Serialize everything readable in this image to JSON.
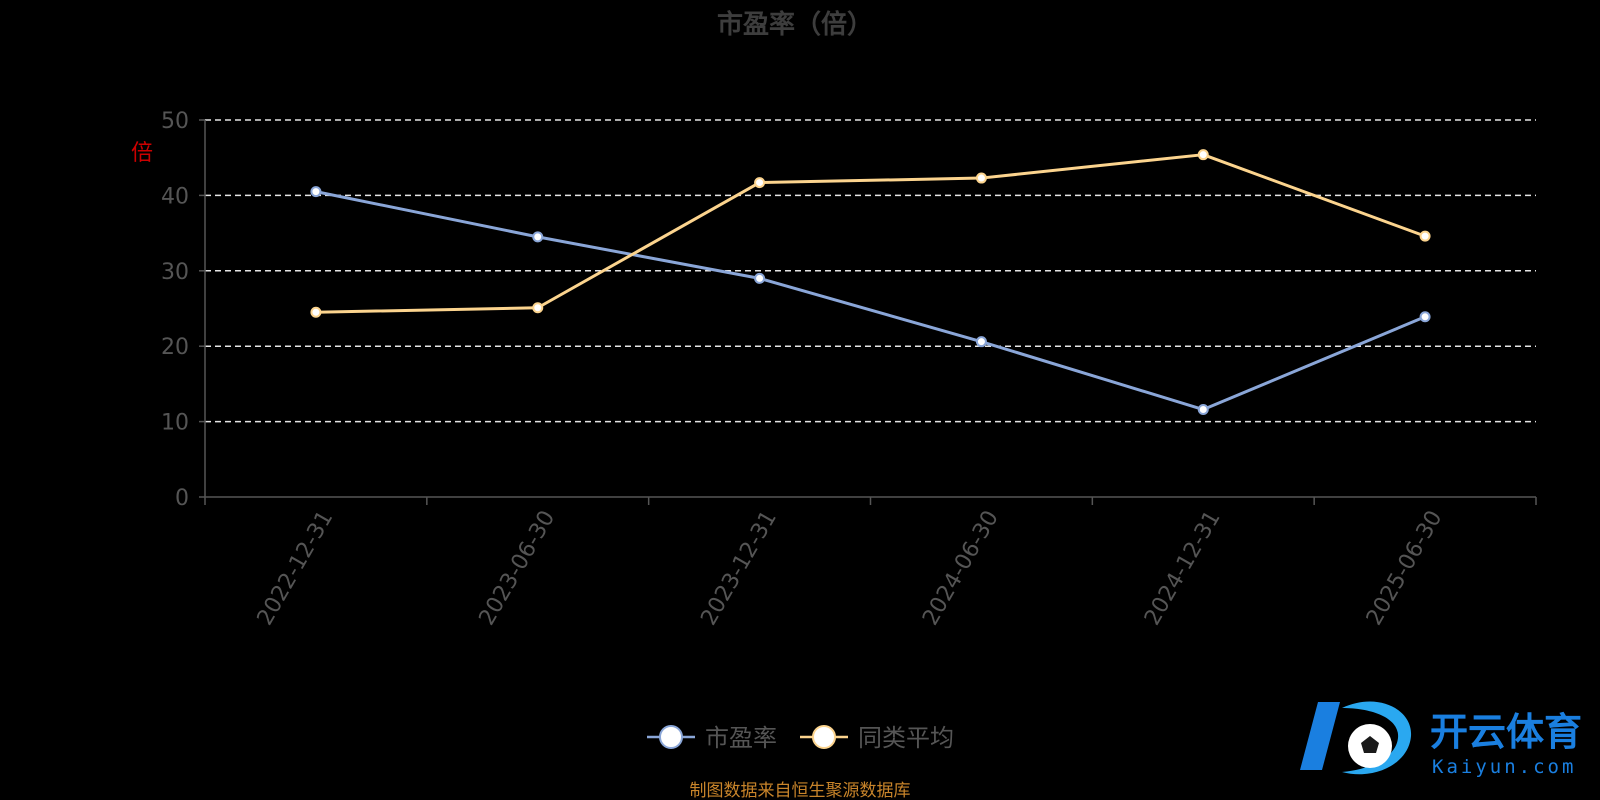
{
  "colors": {
    "background": "#000000",
    "title": "#3d3d3d",
    "axis": "#555555",
    "tick_label": "#555555",
    "grid": "#e6e6e6",
    "ylabel": "#cc0000",
    "legend_text": "#555555",
    "source": "#c8842a",
    "series": [
      "#8aa6d8",
      "#fcd48e"
    ],
    "logo_blue": "#1a7fe0",
    "logo_light": "#2aa8f0"
  },
  "chart_data": {
    "type": "line",
    "title": "市盈率（倍）",
    "ylabel": "倍",
    "xlabel": "",
    "x": [
      "2022-12-31",
      "2023-06-30",
      "2023-12-31",
      "2024-06-30",
      "2024-12-31",
      "2025-06-30"
    ],
    "ylim": [
      0,
      50
    ],
    "yticks": [
      0,
      10,
      20,
      30,
      40,
      50
    ],
    "grid": true,
    "legend_position": "bottom-center",
    "series": [
      {
        "name": "市盈率",
        "values": [
          40.5,
          34.5,
          29.0,
          20.6,
          11.6,
          23.9
        ]
      },
      {
        "name": "同类平均",
        "values": [
          24.5,
          25.1,
          41.7,
          42.3,
          45.4,
          34.6
        ]
      }
    ]
  },
  "source_note": "制图数据来自恒生聚源数据库",
  "logo": {
    "icon": "soccer-ball-icon",
    "text": "开云体育",
    "subtext": "Kaiyun.com"
  }
}
